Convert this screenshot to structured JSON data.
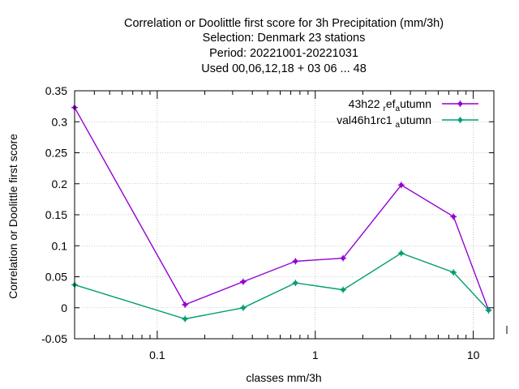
{
  "chart_data": {
    "type": "line",
    "title_lines": [
      "Correlation or Doolittle first score  for 3h Precipitation (mm/3h)",
      "Selection: Denmark     23 stations",
      "Period: 20221001-20221031",
      "Used  00,06,12,18  + 03 06 ... 48"
    ],
    "xlabel": "classes mm/3h",
    "ylabel": "Correlation or Doolittle first score",
    "x_scale": "log",
    "xlim": [
      0.03,
      13.5
    ],
    "ylim": [
      -0.05,
      0.35
    ],
    "x_ticks": [
      {
        "value": 0.1,
        "label": "0.1"
      },
      {
        "value": 1,
        "label": "1"
      },
      {
        "value": 10,
        "label": "10"
      }
    ],
    "y_ticks": [
      {
        "value": -0.05,
        "label": "-0.05"
      },
      {
        "value": 0,
        "label": "0"
      },
      {
        "value": 0.05,
        "label": "0.05"
      },
      {
        "value": 0.1,
        "label": "0.1"
      },
      {
        "value": 0.15,
        "label": "0.15"
      },
      {
        "value": 0.2,
        "label": "0.2"
      },
      {
        "value": 0.25,
        "label": "0.25"
      },
      {
        "value": 0.3,
        "label": "0.3"
      },
      {
        "value": 0.35,
        "label": "0.35"
      }
    ],
    "grid": true,
    "legend_position": "top-right",
    "x": [
      0.03,
      0.15,
      0.35,
      0.75,
      1.5,
      3.5,
      7.5,
      12.5
    ],
    "series": [
      {
        "legend_main": "43h22",
        "legend_sub1": "ref",
        "legend_sub2": "a",
        "legend_tail": "utumn",
        "color": "#9400d3",
        "values": [
          0.323,
          0.005,
          0.042,
          0.075,
          0.08,
          0.198,
          0.147,
          -0.004
        ]
      },
      {
        "legend_main": "val46h1rc1",
        "legend_sub1": "",
        "legend_sub2": "a",
        "legend_tail": "utumn",
        "color": "#009e73",
        "values": [
          0.037,
          -0.018,
          0.0,
          0.04,
          0.029,
          0.088,
          0.057,
          -0.004
        ]
      }
    ]
  }
}
